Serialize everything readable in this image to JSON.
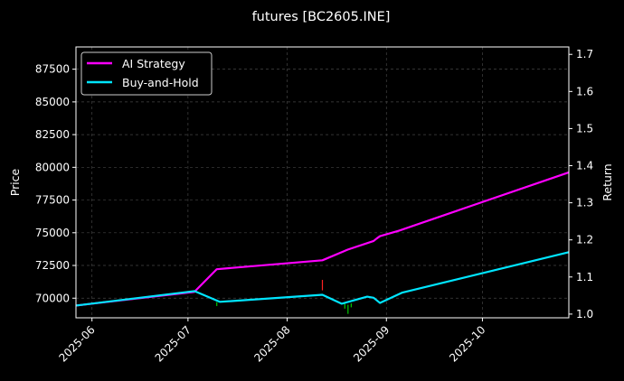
{
  "chart_data": {
    "type": "line",
    "title": "futures [BC2605.INE]",
    "xlabel": "",
    "ylabel": "Price",
    "y2label": "Return",
    "x_ticks": [
      "2025-06",
      "2025-07",
      "2025-08",
      "2025-09",
      "2025-10"
    ],
    "y_ticks": [
      "70000",
      "72500",
      "75000",
      "77500",
      "80000",
      "82500",
      "85000",
      "87500"
    ],
    "y2_ticks": [
      "1.0",
      "1.1",
      "1.2",
      "1.3",
      "1.4",
      "1.5",
      "1.6",
      "1.7"
    ],
    "xlim": [
      "2025-05-27",
      "2025-10-28"
    ],
    "ylim": [
      68500,
      89200
    ],
    "y2lim": [
      0.99,
      1.72
    ],
    "grid": true,
    "legend_position": "top-left",
    "colors": {
      "background": "#000000",
      "grid": "#444444",
      "ai": "#ff00ff",
      "bh": "#00e5ff",
      "up": "#ff2222",
      "down": "#00cc00"
    },
    "series": [
      {
        "name": "AI Strategy",
        "color": "#ff00ff",
        "axis": "right",
        "points": [
          [
            "2025-05-27",
            1.023
          ],
          [
            "2025-07-03",
            1.06
          ],
          [
            "2025-07-10",
            1.121
          ],
          [
            "2025-08-12",
            1.145
          ],
          [
            "2025-08-20",
            1.174
          ],
          [
            "2025-08-28",
            1.197
          ],
          [
            "2025-08-29",
            1.204
          ],
          [
            "2025-08-30",
            1.21
          ],
          [
            "2025-09-05",
            1.225
          ],
          [
            "2025-10-28",
            1.382
          ]
        ]
      },
      {
        "name": "Buy-and-Hold",
        "color": "#00e5ff",
        "axis": "right",
        "points": [
          [
            "2025-05-27",
            1.023
          ],
          [
            "2025-07-03",
            1.062
          ],
          [
            "2025-07-11",
            1.033
          ],
          [
            "2025-08-12",
            1.052
          ],
          [
            "2025-08-18",
            1.028
          ],
          [
            "2025-08-26",
            1.047
          ],
          [
            "2025-08-28",
            1.044
          ],
          [
            "2025-08-30",
            1.03
          ],
          [
            "2025-09-06",
            1.058
          ],
          [
            "2025-10-28",
            1.167
          ]
        ]
      }
    ],
    "price_marks": [
      {
        "date": "2025-07-10",
        "low": 69400,
        "high": 69700,
        "dir": "down"
      },
      {
        "date": "2025-08-12",
        "low": 70600,
        "high": 71400,
        "dir": "up"
      },
      {
        "date": "2025-08-19",
        "low": 69200,
        "high": 69700,
        "dir": "down"
      },
      {
        "date": "2025-08-20",
        "low": 68800,
        "high": 69500,
        "dir": "down"
      },
      {
        "date": "2025-08-21",
        "low": 69300,
        "high": 69600,
        "dir": "down"
      }
    ]
  }
}
